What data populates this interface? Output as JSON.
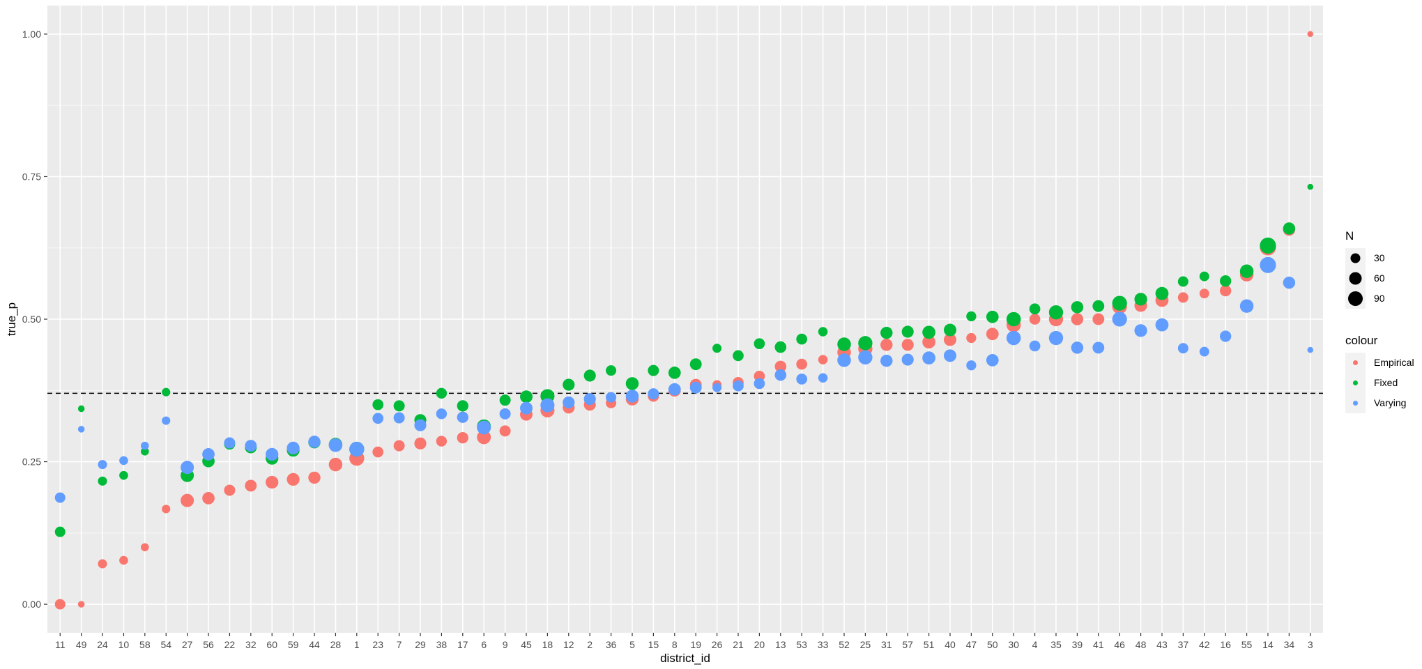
{
  "chart_data": {
    "type": "scatter",
    "xlabel": "district_id",
    "ylabel": "true_p",
    "categories": [
      "11",
      "49",
      "24",
      "10",
      "58",
      "54",
      "27",
      "56",
      "22",
      "32",
      "60",
      "59",
      "44",
      "28",
      "1",
      "23",
      "7",
      "29",
      "38",
      "17",
      "6",
      "9",
      "45",
      "18",
      "12",
      "2",
      "36",
      "5",
      "15",
      "8",
      "19",
      "26",
      "21",
      "20",
      "13",
      "53",
      "33",
      "52",
      "25",
      "31",
      "57",
      "51",
      "40",
      "47",
      "50",
      "30",
      "4",
      "35",
      "39",
      "41",
      "46",
      "48",
      "43",
      "37",
      "42",
      "16",
      "55",
      "14",
      "34",
      "3"
    ],
    "ylim": [
      -0.05,
      1.05
    ],
    "yticks": [
      0.0,
      0.25,
      0.5,
      0.75,
      1.0
    ],
    "ytick_labels": [
      "0.00",
      "0.25",
      "0.50",
      "0.75",
      "1.00"
    ],
    "hline": 0.37,
    "grid": true,
    "series": [
      {
        "name": "Empirical",
        "color": "#F8766D",
        "values": [
          0.0,
          0.0,
          0.071,
          0.077,
          0.1,
          0.167,
          0.182,
          0.186,
          0.2,
          0.208,
          0.214,
          0.219,
          0.222,
          0.245,
          0.256,
          0.267,
          0.278,
          0.282,
          0.286,
          0.292,
          0.293,
          0.304,
          0.333,
          0.34,
          0.345,
          0.35,
          0.353,
          0.36,
          0.365,
          0.375,
          0.385,
          0.385,
          0.389,
          0.4,
          0.417,
          0.421,
          0.429,
          0.442,
          0.448,
          0.455,
          0.455,
          0.46,
          0.464,
          0.467,
          0.474,
          0.49,
          0.5,
          0.5,
          0.5,
          0.5,
          0.522,
          0.524,
          0.533,
          0.538,
          0.545,
          0.55,
          0.578,
          0.626,
          0.657,
          1.0
        ]
      },
      {
        "name": "Fixed",
        "color": "#00BA38",
        "values": [
          0.127,
          0.343,
          0.216,
          0.226,
          0.268,
          0.372,
          0.226,
          0.251,
          0.281,
          0.275,
          0.256,
          0.27,
          0.284,
          0.28,
          0.272,
          0.35,
          0.348,
          0.323,
          0.37,
          0.348,
          0.312,
          0.358,
          0.364,
          0.365,
          0.385,
          0.401,
          0.41,
          0.387,
          0.41,
          0.406,
          0.421,
          0.449,
          0.436,
          0.457,
          0.451,
          0.465,
          0.478,
          0.456,
          0.458,
          0.476,
          0.478,
          0.477,
          0.481,
          0.505,
          0.504,
          0.5,
          0.518,
          0.512,
          0.521,
          0.523,
          0.528,
          0.535,
          0.545,
          0.566,
          0.575,
          0.567,
          0.584,
          0.629,
          0.659,
          0.732
        ]
      },
      {
        "name": "Varying",
        "color": "#619CFF",
        "values": [
          0.187,
          0.307,
          0.245,
          0.252,
          0.278,
          0.322,
          0.24,
          0.263,
          0.283,
          0.278,
          0.263,
          0.274,
          0.285,
          0.279,
          0.272,
          0.326,
          0.327,
          0.314,
          0.334,
          0.328,
          0.31,
          0.334,
          0.344,
          0.349,
          0.354,
          0.36,
          0.363,
          0.365,
          0.369,
          0.377,
          0.38,
          0.38,
          0.383,
          0.387,
          0.402,
          0.395,
          0.397,
          0.428,
          0.433,
          0.427,
          0.429,
          0.432,
          0.436,
          0.419,
          0.428,
          0.467,
          0.453,
          0.467,
          0.45,
          0.45,
          0.5,
          0.48,
          0.49,
          0.449,
          0.443,
          0.47,
          0.523,
          0.595,
          0.564,
          0.446
        ]
      }
    ],
    "n_values": [
      13,
      2,
      8,
      7,
      5,
      6,
      27,
      22,
      16,
      19,
      24,
      24,
      21,
      29,
      38,
      15,
      16,
      20,
      14,
      17,
      31,
      16,
      23,
      32,
      20,
      20,
      13,
      25,
      16,
      22,
      19,
      8,
      15,
      15,
      18,
      15,
      9,
      29,
      33,
      21,
      20,
      26,
      23,
      11,
      22,
      34,
      15,
      33,
      21,
      19,
      37,
      24,
      26,
      13,
      10,
      17,
      29,
      47,
      21,
      1
    ],
    "legend": {
      "position": "right",
      "size": {
        "title": "N",
        "labels": [
          "30",
          "60",
          "90"
        ]
      },
      "colour": {
        "title": "colour",
        "labels": [
          "Empirical",
          "Fixed",
          "Varying"
        ]
      }
    }
  }
}
